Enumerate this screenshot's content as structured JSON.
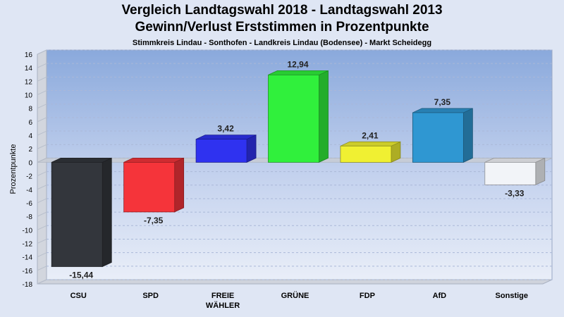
{
  "chart_data": {
    "type": "bar",
    "title": "Vergleich Landtagswahl 2018 - Landtagswahl 2013",
    "subtitle": "Gewinn/Verlust Erststimmen in Prozentpunkte",
    "subtitle2": "Stimmkreis Lindau - Sonthofen - Landkreis Lindau (Bodensee) - Markt Scheidegg",
    "ylabel": "Prozentpunkte",
    "ylim": [
      -18,
      16
    ],
    "yticks": [
      16,
      14,
      12,
      10,
      8,
      6,
      4,
      2,
      0,
      -2,
      -4,
      -6,
      -8,
      -10,
      -12,
      -14,
      -16,
      -18
    ],
    "grid": true,
    "categories": [
      {
        "lines": [
          "CSU"
        ]
      },
      {
        "lines": [
          "SPD"
        ]
      },
      {
        "lines": [
          "FREIE",
          "WÄHLER"
        ]
      },
      {
        "lines": [
          "GRÜNE"
        ]
      },
      {
        "lines": [
          "FDP"
        ]
      },
      {
        "lines": [
          "AfD"
        ]
      },
      {
        "lines": [
          "Sonstige"
        ]
      }
    ],
    "values": [
      -15.44,
      -7.35,
      3.42,
      12.94,
      2.41,
      7.35,
      -3.33
    ],
    "value_labels": [
      "-15,44",
      "-7,35",
      "3,42",
      "12,94",
      "2,41",
      "7,35",
      "-3,33"
    ],
    "colors": [
      "#33363c",
      "#f5343a",
      "#2f32f0",
      "#30f03c",
      "#f0f032",
      "#2f97d2",
      "#f2f4f8"
    ]
  }
}
